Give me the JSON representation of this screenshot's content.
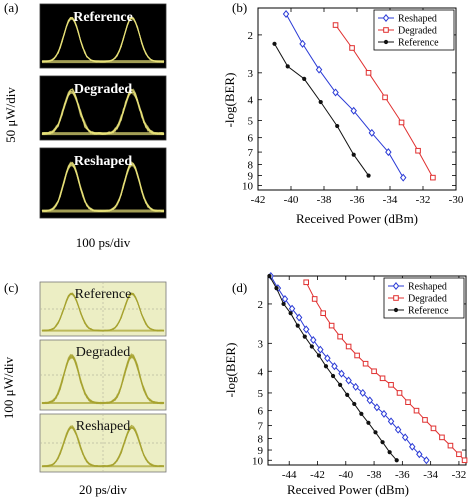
{
  "chart_data": [
    {
      "panel": "(a)",
      "type": "eye-diagram",
      "xlabel": "100 ps/div",
      "ylabel": "50 μW/div",
      "panels": [
        {
          "label": "Reference",
          "noise": 0.2
        },
        {
          "label": "Degraded",
          "noise": 0.45
        },
        {
          "label": "Reshaped",
          "noise": 0.28
        }
      ],
      "colors": {
        "background": "#000000",
        "trace": "#e8e27a",
        "label": "#ffffff"
      }
    },
    {
      "panel": "(b)",
      "type": "line",
      "xlabel": "Received Power (dBm)",
      "ylabel": "-log(BER)",
      "xlim": [
        -42,
        -30
      ],
      "xticks": [
        -42,
        -40,
        -38,
        -36,
        -34,
        -32,
        -30
      ],
      "yticks": [
        2,
        3,
        4,
        5,
        6,
        7,
        8,
        9,
        10
      ],
      "y_scale": "log(-log(BER)), inverted",
      "legend": "top-right",
      "series": [
        {
          "name": "Reshaped",
          "color": "#2b3bd6",
          "marker": "diamond",
          "x": [
            -40.3,
            -39.3,
            -38.3,
            -37.3,
            -36.2,
            -35.1,
            -34.1,
            -33.2
          ],
          "y": [
            1.6,
            2.2,
            2.9,
            3.7,
            4.5,
            5.7,
            7.0,
            9.2
          ]
        },
        {
          "name": "Degraded",
          "color": "#e03030",
          "marker": "square",
          "x": [
            -37.3,
            -36.3,
            -35.3,
            -34.3,
            -33.3,
            -32.3,
            -31.4
          ],
          "y": [
            1.8,
            2.3,
            3.0,
            3.9,
            5.1,
            6.9,
            9.2
          ]
        },
        {
          "name": "Reference",
          "color": "#111111",
          "marker": "circle",
          "x": [
            -41.0,
            -40.2,
            -39.2,
            -38.2,
            -37.2,
            -36.2,
            -35.3
          ],
          "y": [
            2.2,
            2.8,
            3.2,
            4.1,
            5.3,
            7.2,
            9.0
          ]
        }
      ]
    },
    {
      "panel": "(c)",
      "type": "eye-diagram",
      "xlabel": "20 ps/div",
      "ylabel": "100 μW/div",
      "panels": [
        {
          "label": "Reference",
          "noise": 0.18
        },
        {
          "label": "Degraded",
          "noise": 0.32
        },
        {
          "label": "Reshaped",
          "noise": 0.24
        }
      ],
      "colors": {
        "background": "#eceec4",
        "trace": "#a8a430",
        "label": "#111111",
        "grid": "#b8b8a0"
      }
    },
    {
      "panel": "(d)",
      "type": "line",
      "xlabel": "Received Power (dBm)",
      "ylabel": "-log(BER)",
      "xlim": [
        -45.5,
        -31.5
      ],
      "xticks": [
        -44,
        -42,
        -40,
        -38,
        -36,
        -34,
        -32
      ],
      "yticks": [
        2,
        3,
        4,
        5,
        6,
        7,
        8,
        9,
        10
      ],
      "y_scale": "log(-log(BER)), inverted",
      "legend": "top-right",
      "series": [
        {
          "name": "Reshaped",
          "color": "#2b3bd6",
          "marker": "diamond",
          "x": [
            -45.3,
            -44.8,
            -44.3,
            -43.8,
            -43.3,
            -42.8,
            -42.3,
            -41.8,
            -41.3,
            -40.8,
            -40.3,
            -39.8,
            -39.3,
            -38.8,
            -38.3,
            -37.8,
            -37.3,
            -36.8,
            -36.3,
            -35.8,
            -35.3,
            -34.8,
            -34.3
          ],
          "y": [
            1.5,
            1.7,
            1.9,
            2.1,
            2.3,
            2.6,
            2.9,
            3.2,
            3.5,
            3.8,
            4.1,
            4.4,
            4.7,
            5.0,
            5.4,
            5.8,
            6.2,
            6.7,
            7.3,
            7.9,
            8.7,
            9.4,
            10.0
          ]
        },
        {
          "name": "Degraded",
          "color": "#e03030",
          "marker": "square",
          "x": [
            -42.8,
            -42.2,
            -41.6,
            -41.0,
            -40.4,
            -39.8,
            -39.2,
            -38.6,
            -38.0,
            -37.4,
            -36.8,
            -36.2,
            -35.6,
            -35.0,
            -34.4,
            -33.8,
            -33.2,
            -32.6,
            -32.0,
            -31.6
          ],
          "y": [
            1.6,
            1.9,
            2.2,
            2.5,
            2.8,
            3.1,
            3.4,
            3.7,
            4.0,
            4.3,
            4.6,
            5.0,
            5.5,
            6.0,
            6.6,
            7.2,
            7.9,
            8.6,
            9.4,
            10.0
          ]
        },
        {
          "name": "Reference",
          "color": "#111111",
          "marker": "circle",
          "x": [
            -45.4,
            -44.9,
            -44.4,
            -43.9,
            -43.4,
            -42.9,
            -42.4,
            -41.9,
            -41.4,
            -40.9,
            -40.4,
            -39.9,
            -39.4,
            -38.9,
            -38.4,
            -37.9,
            -37.4,
            -36.9,
            -36.4
          ],
          "y": [
            1.5,
            1.7,
            2.0,
            2.2,
            2.5,
            2.8,
            3.1,
            3.4,
            3.8,
            4.2,
            4.6,
            5.1,
            5.6,
            6.2,
            6.8,
            7.5,
            8.3,
            9.2,
            10.0
          ]
        }
      ]
    }
  ]
}
